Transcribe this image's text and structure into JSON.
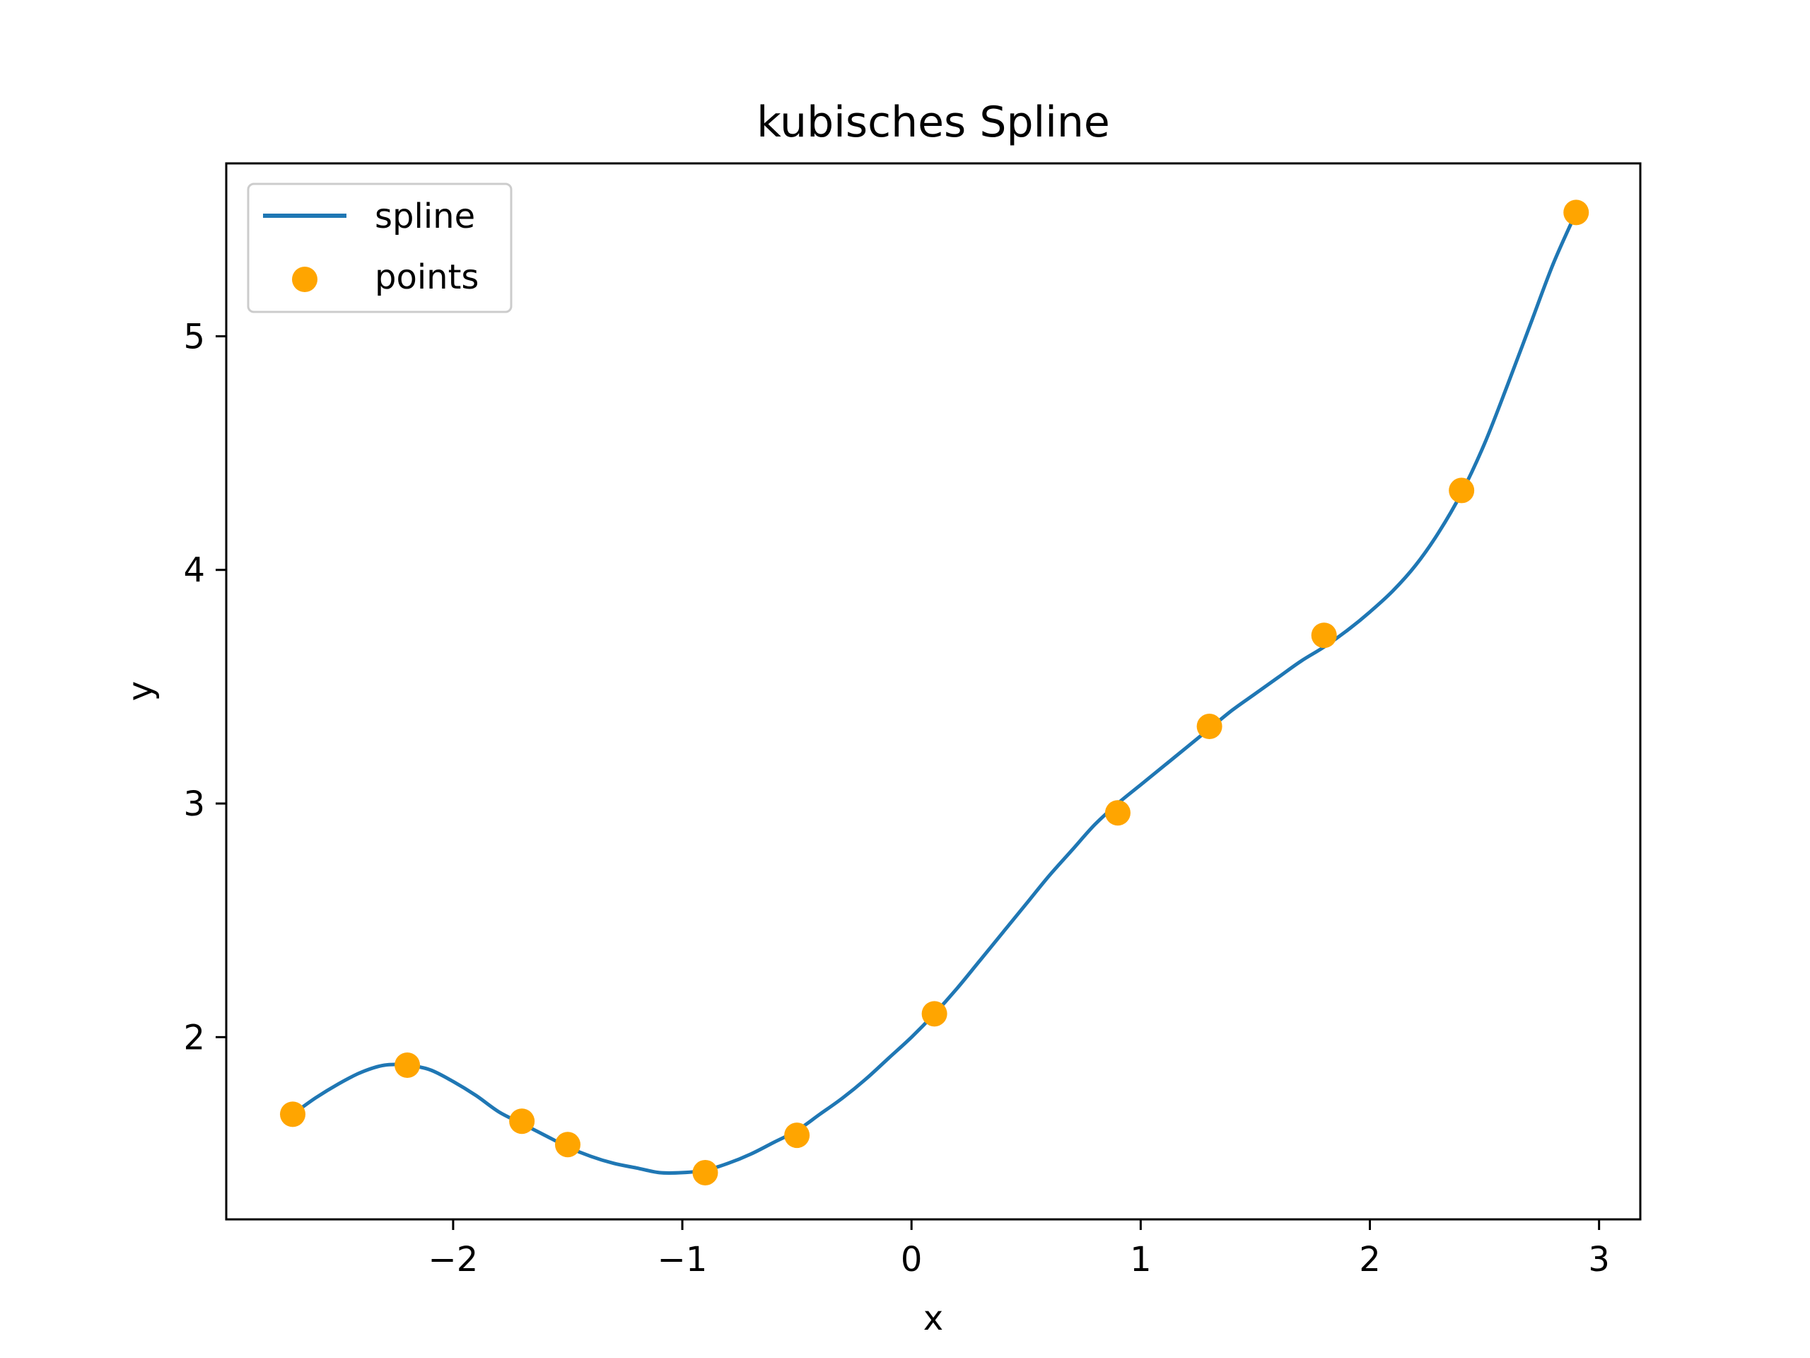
{
  "chart_data": {
    "type": "line",
    "title": "kubisches Spline",
    "xlabel": "x",
    "ylabel": "y",
    "xlim": [
      -2.99,
      3.18
    ],
    "ylim": [
      1.22,
      5.74
    ],
    "x_ticks": [
      -2,
      -1,
      0,
      1,
      2,
      3
    ],
    "x_tick_labels": [
      "−2",
      "−1",
      "0",
      "1",
      "2",
      "3"
    ],
    "y_ticks": [
      2,
      3,
      4,
      5
    ],
    "y_tick_labels": [
      "2",
      "3",
      "4",
      "5"
    ],
    "grid": false,
    "legend": {
      "position": "top-left"
    },
    "series": [
      {
        "name": "spline",
        "kind": "line",
        "color": "#1f77b4",
        "points": [
          [
            -2.7,
            1.67
          ],
          [
            -2.6,
            1.74
          ],
          [
            -2.5,
            1.8
          ],
          [
            -2.4,
            1.85
          ],
          [
            -2.3,
            1.88
          ],
          [
            -2.2,
            1.88
          ],
          [
            -2.1,
            1.86
          ],
          [
            -2.0,
            1.81
          ],
          [
            -1.9,
            1.75
          ],
          [
            -1.8,
            1.68
          ],
          [
            -1.7,
            1.63
          ],
          [
            -1.6,
            1.58
          ],
          [
            -1.5,
            1.53
          ],
          [
            -1.4,
            1.49
          ],
          [
            -1.3,
            1.46
          ],
          [
            -1.2,
            1.44
          ],
          [
            -1.1,
            1.42
          ],
          [
            -1.0,
            1.42
          ],
          [
            -0.9,
            1.43
          ],
          [
            -0.8,
            1.46
          ],
          [
            -0.7,
            1.5
          ],
          [
            -0.6,
            1.55
          ],
          [
            -0.5,
            1.6
          ],
          [
            -0.4,
            1.67
          ],
          [
            -0.3,
            1.74
          ],
          [
            -0.2,
            1.82
          ],
          [
            -0.1,
            1.91
          ],
          [
            0.0,
            2.0
          ],
          [
            0.1,
            2.1
          ],
          [
            0.2,
            2.21
          ],
          [
            0.3,
            2.33
          ],
          [
            0.4,
            2.45
          ],
          [
            0.5,
            2.57
          ],
          [
            0.6,
            2.69
          ],
          [
            0.7,
            2.8
          ],
          [
            0.8,
            2.91
          ],
          [
            0.9,
            3.0
          ],
          [
            1.0,
            3.08
          ],
          [
            1.1,
            3.16
          ],
          [
            1.2,
            3.24
          ],
          [
            1.3,
            3.32
          ],
          [
            1.4,
            3.4
          ],
          [
            1.5,
            3.47
          ],
          [
            1.6,
            3.54
          ],
          [
            1.7,
            3.61
          ],
          [
            1.8,
            3.67
          ],
          [
            1.9,
            3.74
          ],
          [
            2.0,
            3.82
          ],
          [
            2.1,
            3.91
          ],
          [
            2.2,
            4.02
          ],
          [
            2.3,
            4.16
          ],
          [
            2.4,
            4.33
          ],
          [
            2.5,
            4.54
          ],
          [
            2.6,
            4.79
          ],
          [
            2.7,
            5.05
          ],
          [
            2.8,
            5.31
          ],
          [
            2.9,
            5.53
          ]
        ]
      },
      {
        "name": "points",
        "kind": "scatter",
        "color": "#ffa500",
        "points": [
          [
            -2.7,
            1.67
          ],
          [
            -2.2,
            1.88
          ],
          [
            -1.7,
            1.64
          ],
          [
            -1.5,
            1.54
          ],
          [
            -0.9,
            1.42
          ],
          [
            -0.5,
            1.58
          ],
          [
            0.1,
            2.1
          ],
          [
            0.9,
            2.96
          ],
          [
            1.3,
            3.33
          ],
          [
            1.8,
            3.72
          ],
          [
            2.4,
            4.34
          ],
          [
            2.9,
            5.53
          ]
        ]
      }
    ]
  }
}
